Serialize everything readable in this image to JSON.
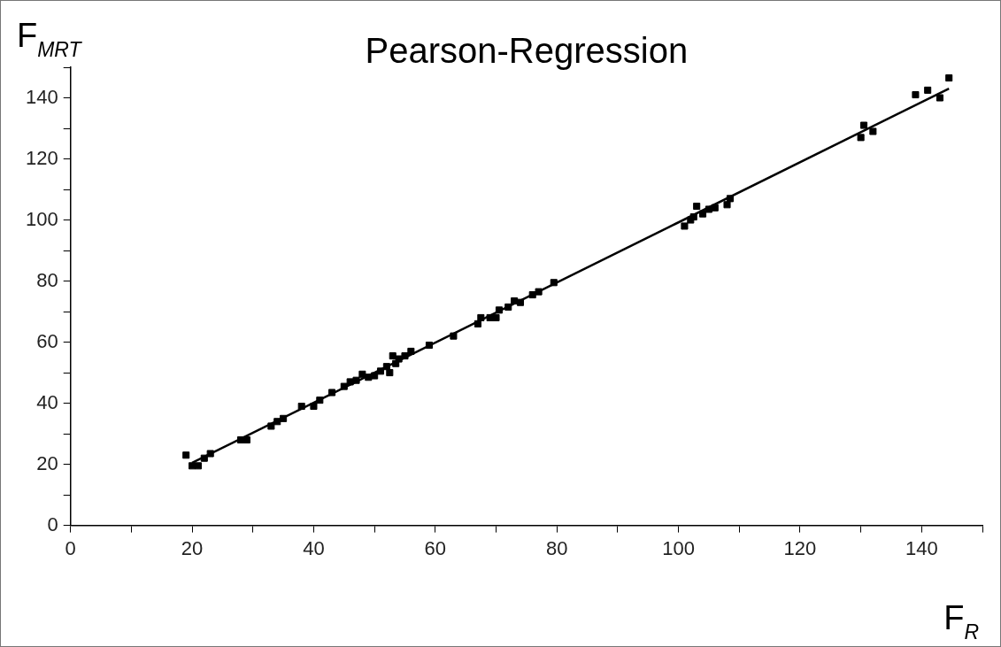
{
  "chart_data": {
    "type": "scatter",
    "title": "Pearson-Regression",
    "xlabel": "F$_{R}$",
    "ylabel": "F$_{MRT}$",
    "xlim": [
      0,
      150
    ],
    "ylim": [
      0,
      150
    ],
    "xticks": [
      0,
      {
        "value": 10,
        "label": null
      },
      20,
      {
        "value": 30,
        "label": null
      },
      40,
      {
        "value": 50,
        "label": null
      },
      60,
      {
        "value": 70,
        "label": null
      },
      80,
      {
        "value": 90,
        "label": null
      },
      100,
      {
        "value": 110,
        "label": null
      },
      120,
      {
        "value": 130,
        "label": null
      },
      140,
      {
        "value": 150,
        "label": null
      }
    ],
    "yticks": [
      0,
      {
        "value": 10,
        "label": null
      },
      20,
      {
        "value": 30,
        "label": null
      },
      40,
      {
        "value": 50,
        "label": null
      },
      60,
      {
        "value": 70,
        "label": null
      },
      80,
      {
        "value": 90,
        "label": null
      },
      100,
      {
        "value": 110,
        "label": null
      },
      120,
      {
        "value": 130,
        "label": null
      },
      140,
      {
        "value": 150,
        "label": null
      }
    ],
    "grid": false,
    "legend": false,
    "series": [
      {
        "marker": "square",
        "color": "#000000",
        "x": [
          19,
          20,
          21,
          22,
          23,
          28,
          29,
          33,
          34,
          35,
          38,
          40,
          41,
          43,
          45,
          46,
          47,
          48,
          49,
          50,
          51,
          52,
          52.5,
          53,
          53.5,
          54,
          55,
          56,
          59,
          63,
          67,
          67.5,
          69,
          70,
          70.5,
          72,
          73,
          74,
          76,
          77,
          79.5,
          101,
          102,
          102.5,
          103,
          104,
          105,
          106,
          108,
          108.5,
          130,
          130.5,
          132,
          139,
          141,
          143,
          144.5
        ],
        "values": [
          23,
          19.5,
          19.5,
          22,
          23.5,
          28,
          28,
          32.5,
          34,
          35,
          39,
          39,
          41,
          43.5,
          45.5,
          47,
          47.5,
          49.5,
          48.5,
          49,
          50.5,
          52,
          50,
          55.5,
          53,
          54.5,
          55.5,
          57,
          59,
          62,
          66,
          68,
          68,
          68,
          70.5,
          71.5,
          73.5,
          73,
          75.5,
          76.5,
          79.5,
          98,
          100,
          101,
          104.5,
          102,
          103.5,
          104,
          105,
          107,
          127,
          131,
          129,
          141,
          142.5,
          140,
          146.5
        ]
      },
      {
        "type": "line",
        "marker": "none",
        "color": "#000000",
        "x": [
          20,
          144.5
        ],
        "values": [
          20.5,
          143
        ]
      }
    ]
  }
}
